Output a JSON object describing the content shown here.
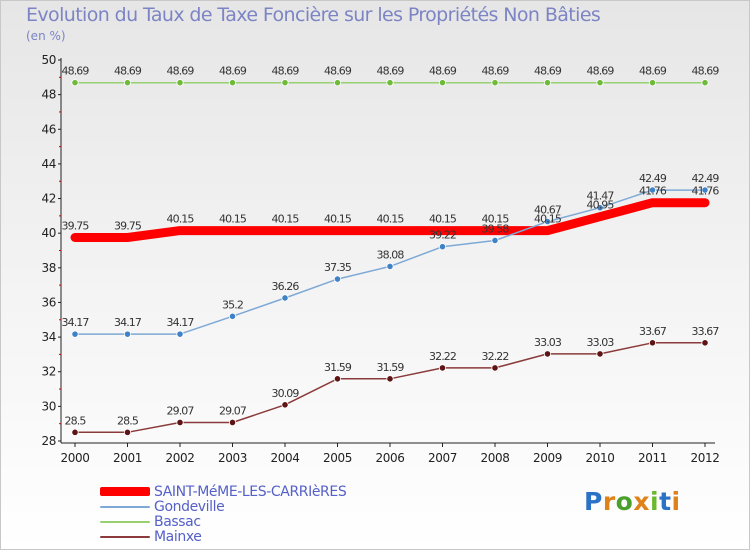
{
  "title": "Evolution du Taux de Taxe Foncière sur les Propriétés Non Bâties",
  "unit": "(en %)",
  "logo": {
    "text": "Proxiti",
    "colors": [
      "#2a72c6",
      "#e0821a",
      "#4aa02c",
      "#e0821a",
      "#6ab82c",
      "#2a72c6",
      "#e0821a"
    ]
  },
  "chart_data": {
    "type": "line",
    "categories": [
      "2000",
      "2001",
      "2002",
      "2003",
      "2004",
      "2005",
      "2006",
      "2007",
      "2008",
      "2009",
      "2010",
      "2011",
      "2012"
    ],
    "ylim": [
      28,
      50
    ],
    "yticks": [
      28,
      30,
      32,
      34,
      36,
      38,
      40,
      42,
      44,
      46,
      48,
      50
    ],
    "grid": false,
    "legend_position": "bottom-left",
    "series": [
      {
        "name": "SAINT-MéME-LES-CARRIèRES",
        "color": "#ff0000",
        "width": 9,
        "markers": false,
        "values": [
          39.75,
          39.75,
          40.15,
          40.15,
          40.15,
          40.15,
          40.15,
          40.15,
          40.15,
          40.15,
          40.95,
          41.76,
          41.76
        ],
        "labels": [
          "39.75",
          "39.75",
          "40.15",
          "40.15",
          "40.15",
          "40.15",
          "40.15",
          "40.15",
          "40.15",
          "40.15",
          "40.95",
          "41.76",
          "41.76"
        ]
      },
      {
        "name": "Gondeville",
        "color": "#7ea9d6",
        "marker_color": "#3f82c6",
        "width": 1.5,
        "markers": true,
        "values": [
          34.17,
          34.17,
          34.17,
          35.2,
          36.26,
          37.35,
          38.08,
          39.22,
          39.58,
          40.67,
          41.47,
          42.49,
          42.49
        ],
        "labels": [
          "34.17",
          "34.17",
          "34.17",
          "35.2",
          "36.26",
          "37.35",
          "38.08",
          "39.22",
          "39.58",
          "40.67",
          "41.47",
          "42.49",
          "42.49"
        ]
      },
      {
        "name": "Bassac",
        "color": "#96d070",
        "marker_color": "#6fba3a",
        "width": 1.5,
        "markers": true,
        "values": [
          48.69,
          48.69,
          48.69,
          48.69,
          48.69,
          48.69,
          48.69,
          48.69,
          48.69,
          48.69,
          48.69,
          48.69,
          48.69
        ],
        "labels": [
          "48.69",
          "48.69",
          "48.69",
          "48.69",
          "48.69",
          "48.69",
          "48.69",
          "48.69",
          "48.69",
          "48.69",
          "48.69",
          "48.69",
          "48.69"
        ]
      },
      {
        "name": "Mainxe",
        "color": "#8a3a3a",
        "marker_color": "#5e1414",
        "width": 1.5,
        "markers": true,
        "values": [
          28.5,
          28.5,
          29.07,
          29.07,
          30.09,
          31.59,
          31.59,
          32.22,
          32.22,
          33.03,
          33.03,
          33.67,
          33.67
        ],
        "labels": [
          "28.5",
          "28.5",
          "29.07",
          "29.07",
          "30.09",
          "31.59",
          "31.59",
          "32.22",
          "32.22",
          "33.03",
          "33.03",
          "33.67",
          "33.67"
        ]
      }
    ]
  }
}
